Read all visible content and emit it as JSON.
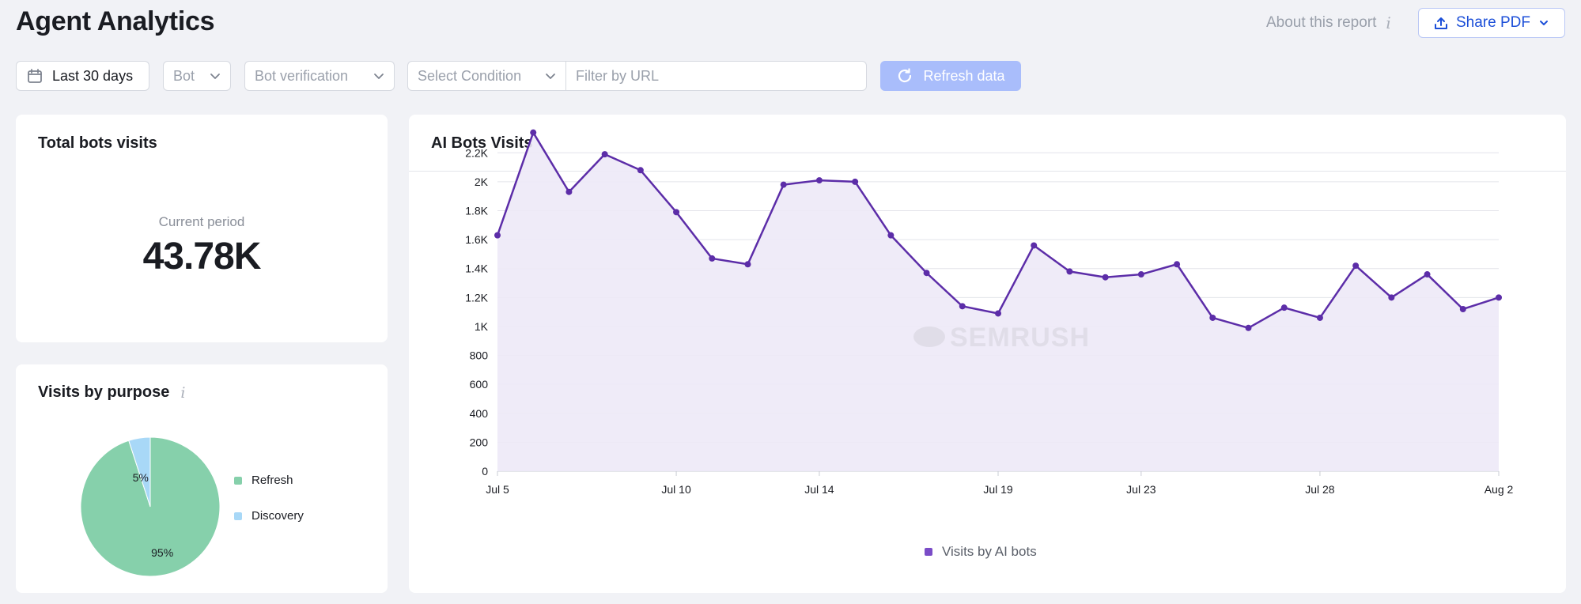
{
  "header": {
    "title": "Agent Analytics",
    "about_label": "About this report",
    "share_label": "Share PDF"
  },
  "filters": {
    "date_range": "Last 30 days",
    "bot_placeholder": "Bot",
    "verification_placeholder": "Bot verification",
    "condition_placeholder": "Select Condition",
    "url_placeholder": "Filter by URL",
    "refresh_label": "Refresh data"
  },
  "total_card": {
    "title": "Total bots visits",
    "period_label": "Current period",
    "value": "43.78K"
  },
  "purpose_card": {
    "title": "Visits by purpose",
    "slices": [
      {
        "label": "Refresh",
        "value": 95,
        "display": "95%",
        "color": "#86d0ab"
      },
      {
        "label": "Discovery",
        "value": 5,
        "display": "5%",
        "color": "#a8d8f7"
      }
    ]
  },
  "chart_card": {
    "title": "AI Bots Visits",
    "watermark": "SEMRUSH"
  },
  "colors": {
    "accent": "#1c4fd8",
    "series_line": "#5c2da8",
    "series_fill": "#ede9f7"
  },
  "chart_data": {
    "type": "area",
    "x": [
      "Jul 5",
      "Jul 6",
      "Jul 7",
      "Jul 8",
      "Jul 9",
      "Jul 10",
      "Jul 11",
      "Jul 12",
      "Jul 13",
      "Jul 14",
      "Jul 15",
      "Jul 16",
      "Jul 17",
      "Jul 18",
      "Jul 19",
      "Jul 20",
      "Jul 21",
      "Jul 22",
      "Jul 23",
      "Jul 24",
      "Jul 25",
      "Jul 26",
      "Jul 27",
      "Jul 28",
      "Jul 29",
      "Jul 30",
      "Jul 31",
      "Aug 1",
      "Aug 2"
    ],
    "x_tick_labels": [
      "Jul 5",
      "Jul 10",
      "Jul 14",
      "Jul 19",
      "Jul 23",
      "Jul 28",
      "Aug 2"
    ],
    "y_tick_labels": [
      "0",
      "200",
      "400",
      "600",
      "800",
      "1K",
      "1.2K",
      "1.4K",
      "1.6K",
      "1.8K",
      "2K",
      "2.2K"
    ],
    "ylim": [
      0,
      2300
    ],
    "series": [
      {
        "name": "Visits by AI bots",
        "color": "#5c2da8",
        "values": [
          1630,
          2340,
          1930,
          2190,
          2080,
          1790,
          1470,
          1430,
          1980,
          2010,
          2000,
          1630,
          1370,
          1140,
          1090,
          1560,
          1380,
          1340,
          1360,
          1430,
          1060,
          990,
          1130,
          1060,
          1420,
          1200,
          1360,
          1120,
          1200
        ]
      }
    ],
    "grid": true,
    "legend": "bottom"
  }
}
